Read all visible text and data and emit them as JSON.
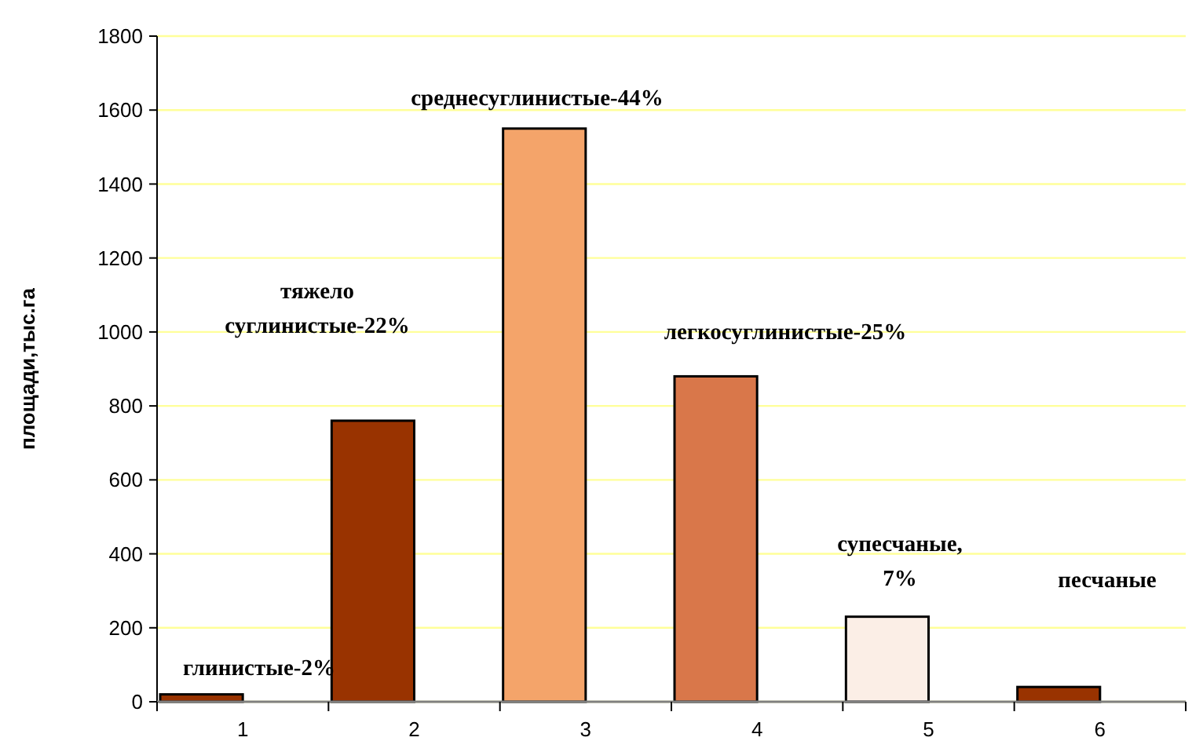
{
  "chart_data": {
    "type": "bar",
    "ylabel": "площади,тыс.га",
    "categories": [
      "1",
      "2",
      "3",
      "4",
      "5",
      "6"
    ],
    "values": [
      20,
      760,
      1550,
      880,
      230,
      40
    ],
    "colors": [
      "#993300",
      "#993300",
      "#f4a46a",
      "#d9774a",
      "#fbeee6",
      "#993300"
    ],
    "ylim": [
      0,
      1800
    ],
    "yticks": [
      0,
      200,
      400,
      600,
      800,
      1000,
      1200,
      1400,
      1600,
      1800
    ],
    "grid": "y",
    "annotations": [
      "глинистые-2%",
      "тяжело\nсуглинистые-22%",
      "среднесуглинистые-44%",
      "легкосуглинистые-25%",
      "супесчаные,\n7%",
      "песчаные"
    ]
  }
}
